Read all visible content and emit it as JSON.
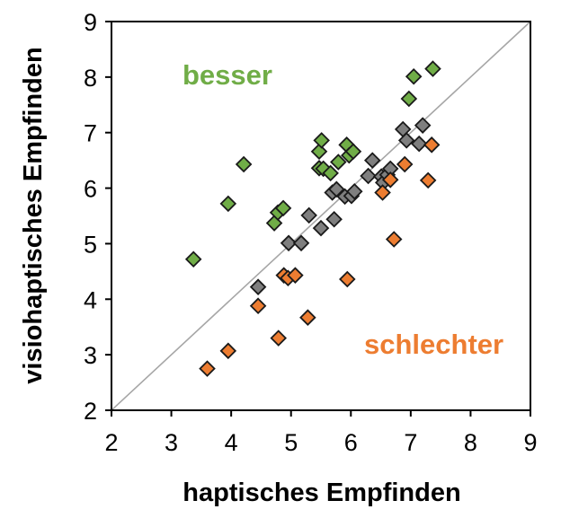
{
  "chart_data": {
    "type": "scatter",
    "title": "",
    "xlabel": "haptisches Empfinden",
    "ylabel": "visiohaptisches Empfinden",
    "xlim": [
      2,
      9
    ],
    "ylim": [
      2,
      9
    ],
    "x_ticks": [
      "2",
      "3",
      "4",
      "5",
      "6",
      "7",
      "8",
      "9"
    ],
    "y_ticks": [
      "2",
      "3",
      "4",
      "5",
      "6",
      "7",
      "8",
      "9"
    ],
    "grid": false,
    "reference_line": {
      "from": [
        2,
        2
      ],
      "to": [
        9,
        9
      ],
      "color": "#a6a6a6"
    },
    "annotations": [
      {
        "text": "besser",
        "color": "#70ad47"
      },
      {
        "text": "schlechter",
        "color": "#ed7d31"
      }
    ],
    "series": [
      {
        "color": "#70ad47",
        "marker": "diamond",
        "points": [
          [
            3.37,
            4.72
          ],
          [
            3.95,
            5.72
          ],
          [
            4.21,
            6.43
          ],
          [
            4.72,
            5.37
          ],
          [
            4.78,
            5.56
          ],
          [
            4.87,
            5.64
          ],
          [
            5.47,
            6.36
          ],
          [
            5.47,
            6.66
          ],
          [
            5.51,
            6.86
          ],
          [
            5.54,
            6.35
          ],
          [
            5.66,
            6.27
          ],
          [
            5.79,
            6.47
          ],
          [
            5.93,
            6.78
          ],
          [
            5.97,
            6.59
          ],
          [
            6.04,
            6.66
          ],
          [
            6.97,
            7.61
          ],
          [
            7.05,
            8.01
          ],
          [
            7.37,
            8.15
          ]
        ]
      },
      {
        "color": "#7f7f7f",
        "marker": "diamond",
        "points": [
          [
            4.45,
            4.22
          ],
          [
            4.96,
            5.01
          ],
          [
            5.17,
            5.01
          ],
          [
            5.3,
            5.51
          ],
          [
            5.5,
            5.28
          ],
          [
            5.69,
            5.92
          ],
          [
            5.72,
            5.44
          ],
          [
            5.76,
            5.98
          ],
          [
            5.9,
            5.85
          ],
          [
            6.01,
            5.86
          ],
          [
            6.06,
            5.94
          ],
          [
            6.29,
            6.22
          ],
          [
            6.36,
            6.5
          ],
          [
            6.51,
            6.21
          ],
          [
            6.54,
            6.1
          ],
          [
            6.61,
            6.24
          ],
          [
            6.66,
            6.35
          ],
          [
            6.87,
            7.06
          ],
          [
            6.93,
            6.86
          ],
          [
            7.14,
            6.8
          ],
          [
            7.2,
            7.13
          ]
        ]
      },
      {
        "color": "#ed7d31",
        "marker": "diamond",
        "points": [
          [
            3.6,
            2.75
          ],
          [
            3.95,
            3.07
          ],
          [
            4.45,
            3.88
          ],
          [
            4.79,
            3.3
          ],
          [
            4.88,
            4.43
          ],
          [
            4.95,
            4.38
          ],
          [
            5.07,
            4.43
          ],
          [
            5.28,
            3.67
          ],
          [
            5.94,
            4.36
          ],
          [
            6.53,
            5.92
          ],
          [
            6.66,
            6.15
          ],
          [
            6.72,
            5.08
          ],
          [
            6.9,
            6.43
          ],
          [
            7.29,
            6.14
          ],
          [
            7.35,
            6.78
          ]
        ]
      }
    ]
  }
}
